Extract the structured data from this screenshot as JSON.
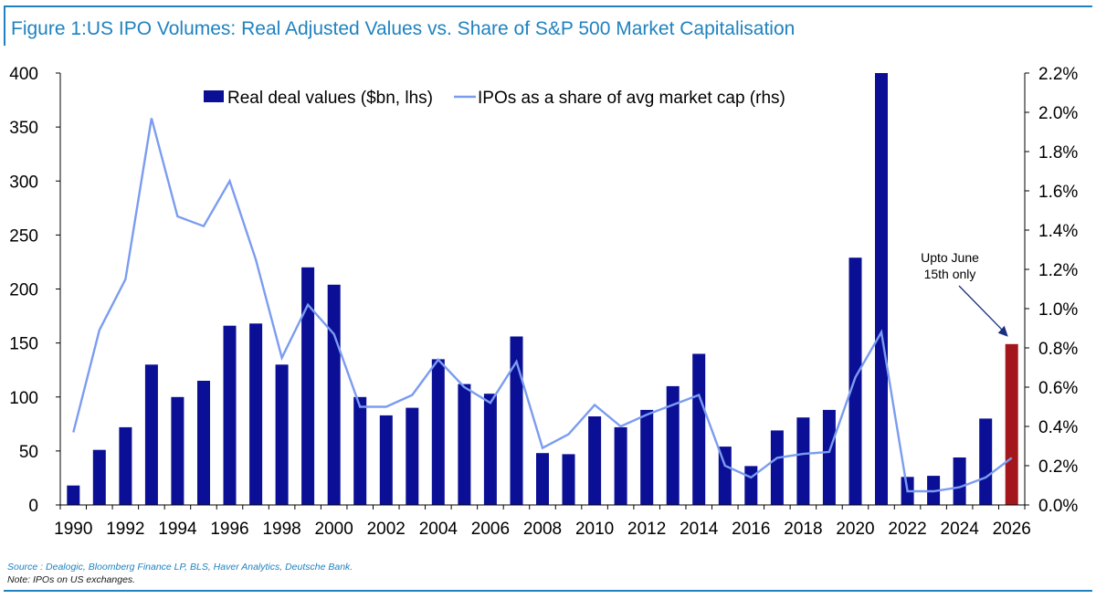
{
  "figure": {
    "title": "Figure 1:US IPO Volumes: Real Adjusted Values vs. Share of S&P 500 Market Capitalisation",
    "source": "Source : Dealogic, Bloomberg Finance LP, BLS, Haver Analytics, Deutsche Bank.",
    "note": "Note: IPOs on US exchanges."
  },
  "colors": {
    "bars": "#0a0f96",
    "highlight_bar": "#a3161b",
    "line": "#7b9cf0",
    "accent": "#1f82c0"
  },
  "chart_data": {
    "type": "bar",
    "categories": [
      "1990",
      "1991",
      "1992",
      "1993",
      "1994",
      "1995",
      "1996",
      "1997",
      "1998",
      "1999",
      "2000",
      "2001",
      "2002",
      "2003",
      "2004",
      "2005",
      "2006",
      "2007",
      "2008",
      "2009",
      "2010",
      "2011",
      "2012",
      "2013",
      "2014",
      "2015",
      "2016",
      "2017",
      "2018",
      "2019",
      "2020",
      "2021",
      "2022",
      "2023",
      "2024",
      "2025",
      "2026"
    ],
    "x_tick_labels": [
      "1990",
      "1992",
      "1994",
      "1996",
      "1998",
      "2000",
      "2002",
      "2004",
      "2006",
      "2008",
      "2010",
      "2012",
      "2014",
      "2016",
      "2018",
      "2020",
      "2022",
      "2024",
      "2026"
    ],
    "series": [
      {
        "name": "Real deal values ($bn, lhs)",
        "type": "bar",
        "axis": "left",
        "values": [
          18,
          51,
          72,
          130,
          100,
          115,
          166,
          168,
          130,
          220,
          204,
          100,
          83,
          90,
          135,
          112,
          103,
          156,
          48,
          47,
          82,
          72,
          88,
          110,
          140,
          54,
          36,
          69,
          81,
          88,
          229,
          400,
          26,
          27,
          44,
          80,
          149
        ],
        "highlight_index": 36
      },
      {
        "name": "IPOs as a share of avg market cap (rhs)",
        "type": "line",
        "axis": "right",
        "values": [
          0.37,
          0.89,
          1.15,
          1.97,
          1.47,
          1.42,
          1.65,
          1.25,
          0.75,
          1.02,
          0.87,
          0.5,
          0.5,
          0.56,
          0.74,
          0.6,
          0.52,
          0.73,
          0.29,
          0.36,
          0.51,
          0.4,
          0.46,
          0.51,
          0.56,
          0.2,
          0.14,
          0.24,
          0.26,
          0.27,
          0.65,
          0.88,
          0.07,
          0.07,
          0.09,
          0.14,
          0.24
        ]
      }
    ],
    "y_left": {
      "min": 0,
      "max": 400,
      "ticks": [
        0,
        50,
        100,
        150,
        200,
        250,
        300,
        350,
        400
      ]
    },
    "y_right": {
      "min": 0,
      "max": 2.2,
      "ticks": [
        "0.0%",
        "0.2%",
        "0.4%",
        "0.6%",
        "0.8%",
        "1.0%",
        "1.2%",
        "1.4%",
        "1.6%",
        "1.8%",
        "2.0%",
        "2.2%"
      ]
    },
    "legend_position": "top-center",
    "grid": false,
    "annotation": {
      "lines": [
        "Upto June",
        "15th only"
      ],
      "target_category": "2026"
    }
  }
}
